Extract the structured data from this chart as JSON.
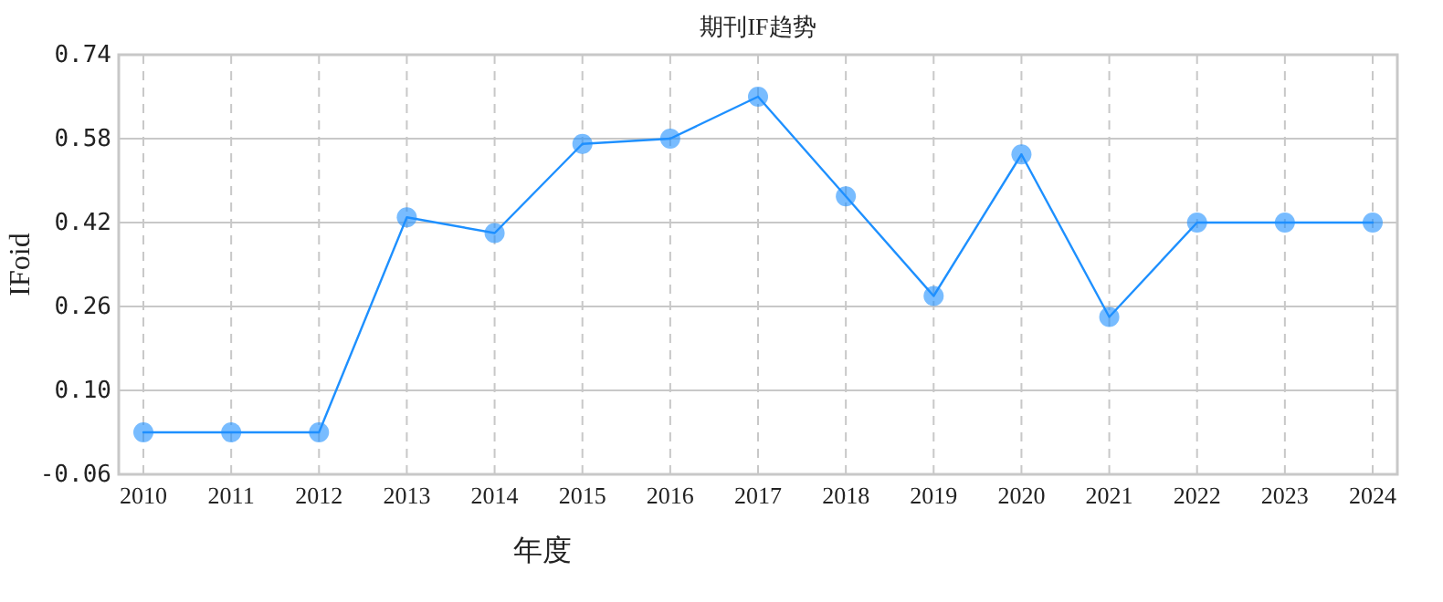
{
  "chart_data": {
    "type": "line",
    "title": "期刊IF趋势",
    "xlabel": "年度",
    "ylabel": "IFoid",
    "categories": [
      "2010",
      "2011",
      "2012",
      "2013",
      "2014",
      "2015",
      "2016",
      "2017",
      "2018",
      "2019",
      "2020",
      "2021",
      "2022",
      "2023",
      "2024"
    ],
    "series": [
      {
        "color": "#1e90ff",
        "values": [
          0.02,
          0.02,
          0.02,
          0.43,
          0.4,
          0.57,
          0.58,
          0.66,
          0.47,
          0.28,
          0.55,
          0.24,
          0.42,
          0.42,
          0.42
        ]
      }
    ],
    "ylim": [
      -0.06,
      0.74
    ],
    "yticks": [
      {
        "value": -0.06,
        "label": "-0.06"
      },
      {
        "value": 0.1,
        "label": "0.10"
      },
      {
        "value": 0.26,
        "label": "0.26"
      },
      {
        "value": 0.42,
        "label": "0.42"
      },
      {
        "value": 0.58,
        "label": "0.58"
      },
      {
        "value": 0.74,
        "label": "0.74"
      }
    ],
    "grid": true,
    "marker": "circle",
    "line_style": "solid"
  }
}
